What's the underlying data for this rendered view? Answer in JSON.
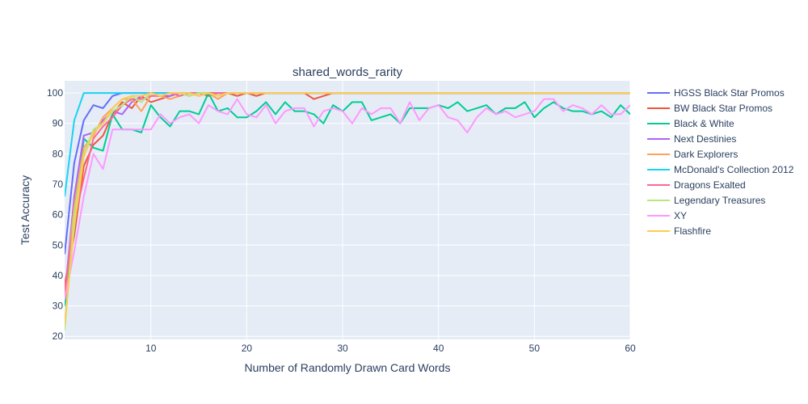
{
  "chart_data": {
    "type": "line",
    "title": "shared_words_rarity",
    "xlabel": "Number of Randomly Drawn Card Words",
    "ylabel": "Test Accuracy",
    "xlim": [
      1,
      60
    ],
    "ylim": [
      19,
      104
    ],
    "xticks": [
      10,
      20,
      30,
      40,
      50,
      60
    ],
    "yticks": [
      20,
      30,
      40,
      50,
      60,
      70,
      80,
      90,
      100
    ],
    "legend_position": "right",
    "series": [
      {
        "name": "HGSS Black Star Promos",
        "color": "#636efa",
        "x": [
          1,
          2,
          3,
          4,
          5,
          6,
          7,
          8,
          9,
          10,
          60
        ],
        "y": [
          47,
          77,
          91,
          96,
          95,
          99,
          100,
          100,
          100,
          100,
          100
        ]
      },
      {
        "name": "BW Black Star Promos",
        "color": "#ef553b",
        "x": [
          1,
          2,
          3,
          4,
          5,
          6,
          7,
          8,
          9,
          10,
          11,
          12,
          13,
          14,
          15,
          16,
          17,
          18,
          19,
          20,
          21,
          22,
          23,
          24,
          25,
          26,
          27,
          28,
          29,
          30,
          60
        ],
        "y": [
          37,
          53,
          76,
          83,
          86,
          93,
          97,
          95,
          99,
          97,
          98,
          99,
          100,
          99,
          100,
          99,
          100,
          100,
          99,
          100,
          99,
          100,
          100,
          100,
          100,
          100,
          98,
          99,
          100,
          100,
          100
        ]
      },
      {
        "name": "Black & White",
        "color": "#00cc96",
        "x": [
          1,
          2,
          3,
          4,
          5,
          6,
          7,
          8,
          9,
          10,
          11,
          12,
          13,
          14,
          15,
          16,
          17,
          18,
          19,
          20,
          21,
          22,
          23,
          24,
          25,
          26,
          27,
          28,
          29,
          30,
          31,
          32,
          33,
          34,
          35,
          36,
          37,
          38,
          39,
          40,
          41,
          42,
          43,
          44,
          45,
          46,
          47,
          48,
          49,
          50,
          51,
          52,
          53,
          54,
          55,
          56,
          57,
          58,
          59,
          60
        ],
        "y": [
          30,
          55,
          85,
          82,
          81,
          93,
          88,
          88,
          87,
          96,
          92,
          89,
          94,
          94,
          93,
          100,
          94,
          95,
          92,
          92,
          94,
          97,
          93,
          97,
          94,
          94,
          93,
          90,
          96,
          94,
          97,
          97,
          91,
          92,
          93,
          90,
          95,
          95,
          95,
          96,
          95,
          97,
          94,
          95,
          96,
          93,
          95,
          95,
          97,
          92,
          95,
          97,
          95,
          94,
          94,
          93,
          94,
          92,
          96,
          93
        ]
      },
      {
        "name": "Next Destinies",
        "color": "#ab63fa",
        "x": [
          1,
          2,
          3,
          4,
          5,
          6,
          7,
          8,
          9,
          10,
          11,
          12,
          13,
          14,
          15,
          16,
          17,
          18,
          19,
          20,
          60
        ],
        "y": [
          33,
          66,
          86,
          87,
          91,
          94,
          93,
          97,
          99,
          100,
          99,
          99,
          100,
          100,
          99,
          100,
          100,
          100,
          100,
          100,
          100
        ]
      },
      {
        "name": "Dark Explorers",
        "color": "#ffa15a",
        "x": [
          1,
          2,
          3,
          4,
          5,
          6,
          7,
          8,
          9,
          10,
          11,
          12,
          13,
          14,
          15,
          16,
          17,
          18,
          19,
          20,
          60
        ],
        "y": [
          32,
          63,
          82,
          86,
          92,
          95,
          98,
          98,
          94,
          99,
          99,
          98,
          99,
          100,
          99,
          100,
          98,
          100,
          100,
          100,
          100
        ]
      },
      {
        "name": "McDonald's Collection 2012",
        "color": "#19d3f3",
        "x": [
          1,
          2,
          3,
          4,
          5,
          6,
          7,
          8,
          9,
          10,
          60
        ],
        "y": [
          66,
          91,
          100,
          100,
          100,
          100,
          100,
          100,
          100,
          100,
          100
        ]
      },
      {
        "name": "Dragons Exalted",
        "color": "#ff6692",
        "x": [
          1,
          2,
          3,
          4,
          5,
          6,
          7,
          8,
          9,
          10,
          11,
          12,
          13,
          14,
          15,
          16,
          17,
          18,
          19,
          20,
          60
        ],
        "y": [
          35,
          58,
          72,
          85,
          89,
          92,
          96,
          98,
          98,
          99,
          99,
          100,
          99,
          100,
          100,
          100,
          100,
          100,
          100,
          100,
          100
        ]
      },
      {
        "name": "Legendary Treasures",
        "color": "#b6e880",
        "x": [
          1,
          2,
          3,
          4,
          5,
          6,
          7,
          8,
          9,
          10,
          11,
          12,
          13,
          14,
          15,
          16,
          17,
          18,
          19,
          20,
          60
        ],
        "y": [
          22,
          60,
          80,
          88,
          90,
          94,
          96,
          99,
          97,
          100,
          99,
          100,
          100,
          99,
          100,
          100,
          99,
          100,
          100,
          100,
          100
        ]
      },
      {
        "name": "XY",
        "color": "#ff97ff",
        "x": [
          1,
          2,
          3,
          4,
          5,
          6,
          7,
          8,
          9,
          10,
          11,
          12,
          13,
          14,
          15,
          16,
          17,
          18,
          19,
          20,
          21,
          22,
          23,
          24,
          25,
          26,
          27,
          28,
          29,
          30,
          31,
          32,
          33,
          34,
          35,
          36,
          37,
          38,
          39,
          40,
          41,
          42,
          43,
          44,
          45,
          46,
          47,
          48,
          49,
          50,
          51,
          52,
          53,
          54,
          55,
          56,
          57,
          58,
          59,
          60
        ],
        "y": [
          32,
          48,
          66,
          80,
          75,
          88,
          88,
          88,
          88,
          88,
          93,
          90,
          92,
          93,
          90,
          96,
          94,
          93,
          98,
          93,
          92,
          96,
          90,
          94,
          95,
          95,
          89,
          94,
          95,
          94,
          90,
          95,
          93,
          95,
          95,
          90,
          97,
          91,
          95,
          96,
          92,
          91,
          87,
          92,
          95,
          93,
          94,
          92,
          93,
          94,
          98,
          98,
          94,
          96,
          95,
          93,
          96,
          93,
          93,
          96
        ]
      },
      {
        "name": "Flashfire",
        "color": "#fecb52",
        "x": [
          1,
          2,
          3,
          4,
          5,
          6,
          7,
          8,
          9,
          10,
          11,
          12,
          13,
          14,
          15,
          16,
          17,
          18,
          19,
          20,
          60
        ],
        "y": [
          24,
          56,
          79,
          87,
          90,
          95,
          98,
          99,
          99,
          100,
          99,
          100,
          100,
          100,
          99,
          100,
          99,
          100,
          100,
          100,
          100
        ]
      }
    ]
  }
}
